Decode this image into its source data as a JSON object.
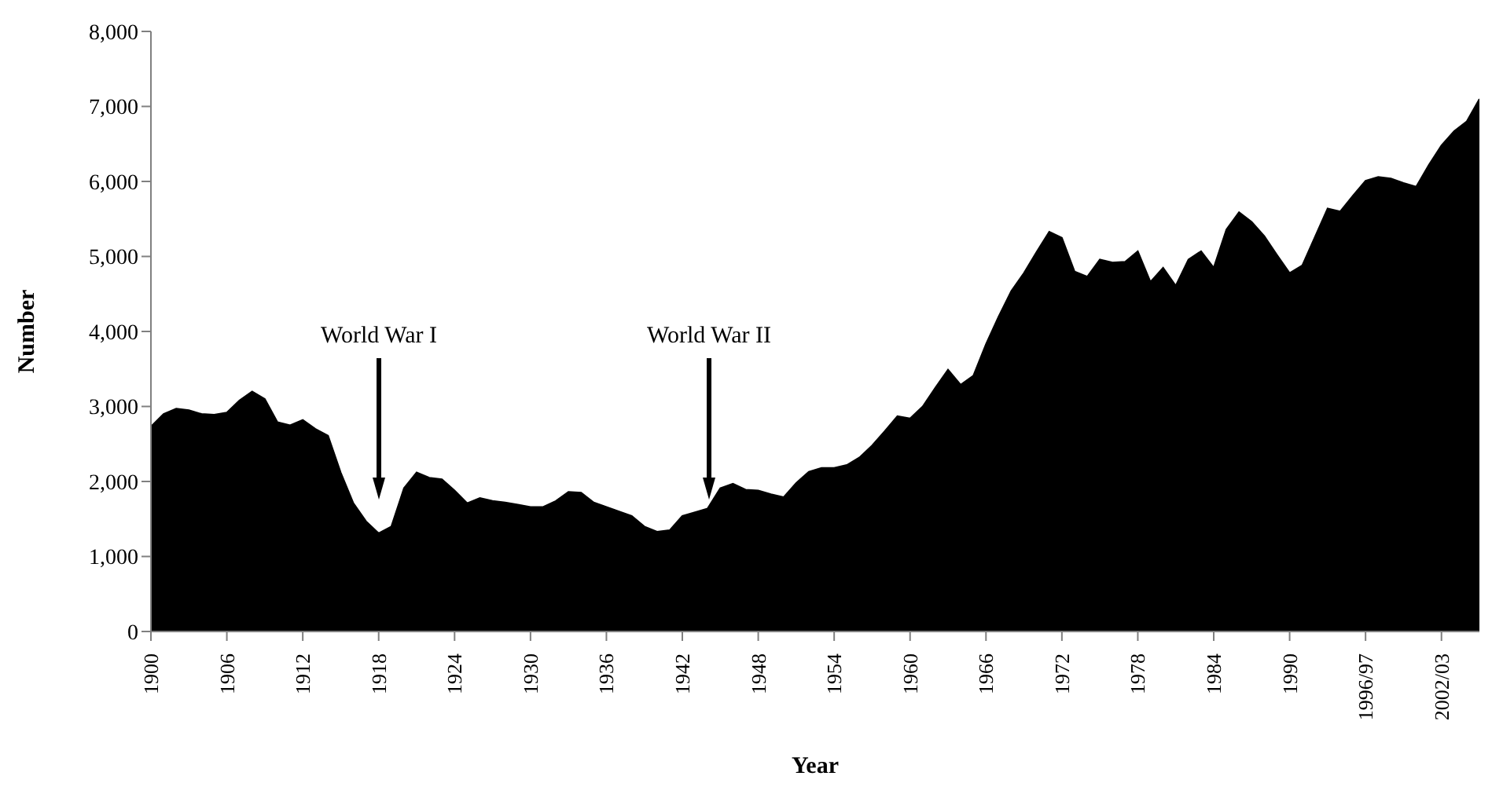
{
  "chart_data": {
    "type": "area",
    "xlabel": "Year",
    "ylabel": "Number",
    "color": "#000000",
    "categories": [
      "1900",
      null,
      null,
      null,
      null,
      null,
      "1906",
      null,
      null,
      null,
      null,
      null,
      "1912",
      null,
      null,
      null,
      null,
      null,
      "1918",
      null,
      null,
      null,
      null,
      null,
      "1924",
      null,
      null,
      null,
      null,
      null,
      "1930",
      null,
      null,
      null,
      null,
      null,
      "1936",
      null,
      null,
      null,
      null,
      null,
      "1942",
      null,
      null,
      null,
      null,
      null,
      "1948",
      null,
      null,
      null,
      null,
      null,
      "1954",
      null,
      null,
      null,
      null,
      null,
      "1960",
      null,
      null,
      null,
      null,
      null,
      "1966",
      null,
      null,
      null,
      null,
      null,
      "1972",
      null,
      null,
      null,
      null,
      null,
      "1978",
      null,
      null,
      null,
      null,
      null,
      "1984",
      null,
      null,
      null,
      null,
      null,
      "1990",
      null,
      null,
      null,
      null,
      null,
      "1996/97",
      null,
      null,
      null,
      null,
      null,
      "2002/03",
      null,
      null,
      null
    ],
    "values": [
      2730,
      2900,
      2970,
      2950,
      2900,
      2890,
      2920,
      3080,
      3200,
      3100,
      2790,
      2750,
      2820,
      2700,
      2610,
      2120,
      1710,
      1470,
      1310,
      1400,
      1910,
      2120,
      2050,
      2030,
      1880,
      1710,
      1780,
      1740,
      1720,
      1690,
      1660,
      1660,
      1740,
      1860,
      1850,
      1720,
      1660,
      1600,
      1540,
      1400,
      1330,
      1350,
      1540,
      1590,
      1640,
      1910,
      1970,
      1890,
      1880,
      1830,
      1790,
      1980,
      2130,
      2180,
      2180,
      2220,
      2320,
      2480,
      2670,
      2870,
      2840,
      3000,
      3250,
      3490,
      3290,
      3410,
      3830,
      4200,
      4540,
      4780,
      5060,
      5330,
      5250,
      4800,
      4730,
      4960,
      4920,
      4930,
      5070,
      4660,
      4850,
      4610,
      4960,
      5070,
      4850,
      5360,
      5590,
      5460,
      5270,
      5020,
      4780,
      4880,
      5260,
      5640,
      5600,
      5810,
      6010,
      6060,
      6040,
      5980,
      5930,
      6220,
      6480,
      6670,
      6800,
      7100
    ],
    "ylim": [
      0,
      8000
    ],
    "yticks": [
      0,
      {
        "value": 1000,
        "label": "1,000"
      },
      {
        "value": 2000,
        "label": "2,000"
      },
      {
        "value": 3000,
        "label": "3,000"
      },
      {
        "value": 4000,
        "label": "4,000"
      },
      {
        "value": 5000,
        "label": "5,000"
      },
      {
        "value": 6000,
        "label": "6,000"
      },
      {
        "value": 7000,
        "label": "7,000"
      },
      {
        "value": 8000,
        "label": "8,000"
      }
    ],
    "grid": false,
    "legend": false,
    "annotations": [
      "World War I",
      "World War II"
    ]
  }
}
